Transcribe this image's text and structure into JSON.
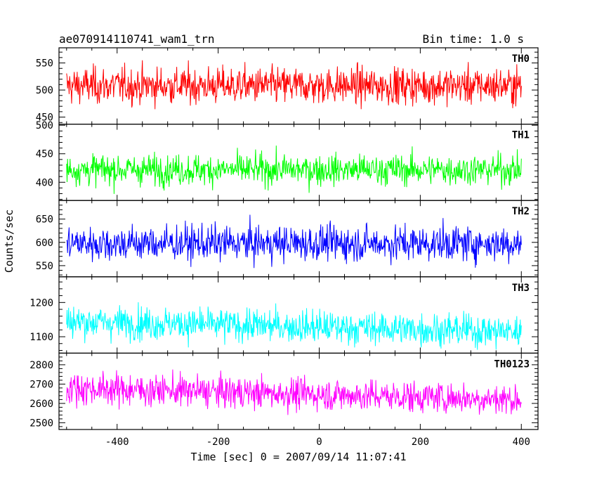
{
  "header": {
    "title": "ae070914110741_wam1_trn",
    "bin_time": "Bin time: 1.0 s"
  },
  "chart_data": {
    "type": "line",
    "title": "ae070914110741_wam1_trn",
    "xlabel": "Time [sec] 0 = 2007/09/14 11:07:41",
    "ylabel": "Counts/sec",
    "xlim": [
      -515,
      433
    ],
    "x_ticks": [
      -400,
      -200,
      0,
      200,
      400
    ],
    "x_range_data": [
      -500,
      400
    ],
    "grid": false,
    "panels": [
      {
        "name": "TH0",
        "color": "#ff0000",
        "ylim": [
          437,
          578
        ],
        "ticks": [
          450,
          500,
          550
        ],
        "mean": 508,
        "noise": 24,
        "trend": 0
      },
      {
        "name": "TH1",
        "color": "#00ff00",
        "ylim": [
          368,
          502
        ],
        "ticks": [
          400,
          450,
          500
        ],
        "mean": 422,
        "noise": 19,
        "trend": 0
      },
      {
        "name": "TH2",
        "color": "#0000ff",
        "ylim": [
          526,
          690
        ],
        "ticks": [
          550,
          600,
          650
        ],
        "mean": 598,
        "noise": 27,
        "trend": 0
      },
      {
        "name": "TH3",
        "color": "#00ffff",
        "ylim": [
          1052,
          1275
        ],
        "ticks": [
          1100,
          1200
        ],
        "mean": 1130,
        "noise": 34,
        "trend": 30
      },
      {
        "name": "TH0123",
        "color": "#ff00ff",
        "ylim": [
          2465,
          2860
        ],
        "ticks": [
          2500,
          2600,
          2700,
          2800
        ],
        "mean": 2650,
        "noise": 58,
        "trend": 60
      }
    ]
  }
}
